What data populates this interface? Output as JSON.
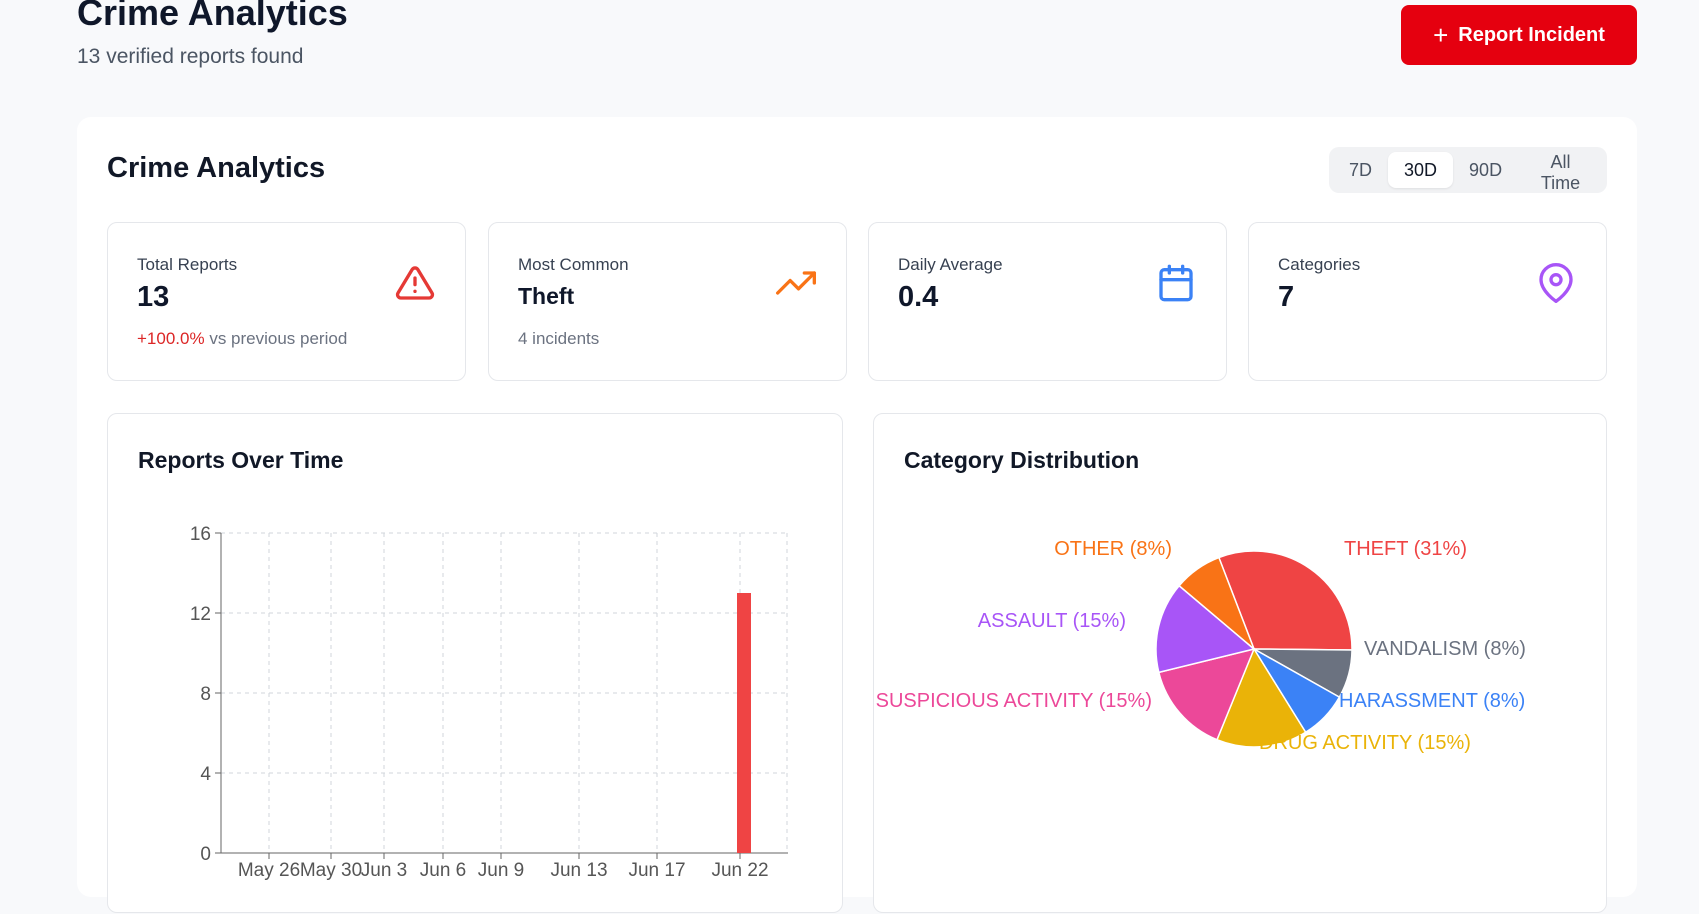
{
  "header": {
    "title": "Crime Analytics",
    "subtitle": "13 verified reports found",
    "report_button": "Report Incident"
  },
  "analytics": {
    "title": "Crime Analytics",
    "ranges": [
      "7D",
      "30D",
      "90D",
      "All Time"
    ],
    "active_range": "30D"
  },
  "stats": {
    "total": {
      "label": "Total Reports",
      "value": "13",
      "change": "+100.0%",
      "change_suffix": " vs previous period",
      "icon": "alert-triangle-icon",
      "color": "#e53935"
    },
    "common": {
      "label": "Most Common",
      "value": "Theft",
      "sub": "4 incidents",
      "icon": "trending-up-icon",
      "color": "#f97316"
    },
    "daily": {
      "label": "Daily Average",
      "value": "0.4",
      "icon": "calendar-icon",
      "color": "#3b82f6"
    },
    "categories": {
      "label": "Categories",
      "value": "7",
      "icon": "map-pin-icon",
      "color": "#a855f7"
    }
  },
  "reports_chart": {
    "title": "Reports Over Time"
  },
  "category_chart": {
    "title": "Category Distribution"
  },
  "chart_data": [
    {
      "type": "bar",
      "title": "Reports Over Time",
      "xlabel": "",
      "ylabel": "",
      "x_ticks": [
        "May 26",
        "May 30",
        "Jun 3",
        "Jun 6",
        "Jun 9",
        "Jun 13",
        "Jun 17",
        "Jun 22"
      ],
      "y_ticks": [
        0,
        4,
        8,
        12,
        16
      ],
      "ylim": [
        0,
        16
      ],
      "grid": true,
      "bars": [
        {
          "x": "Jun 22",
          "value": 13
        }
      ],
      "color": "#ef4444"
    },
    {
      "type": "pie",
      "title": "Category Distribution",
      "slices": [
        {
          "label": "THEFT (31%)",
          "value": 31,
          "color": "#ef4444"
        },
        {
          "label": "VANDALISM (8%)",
          "value": 8,
          "color": "#6b7280"
        },
        {
          "label": "HARASSMENT (8%)",
          "value": 8,
          "color": "#3b82f6"
        },
        {
          "label": "DRUG ACTIVITY (15%)",
          "value": 15,
          "color": "#eab308"
        },
        {
          "label": "SUSPICIOUS ACTIVITY (15%)",
          "value": 15,
          "color": "#ec4899"
        },
        {
          "label": "ASSAULT (15%)",
          "value": 15,
          "color": "#a855f7"
        },
        {
          "label": "OTHER (8%)",
          "value": 8,
          "color": "#f97316"
        }
      ]
    }
  ]
}
